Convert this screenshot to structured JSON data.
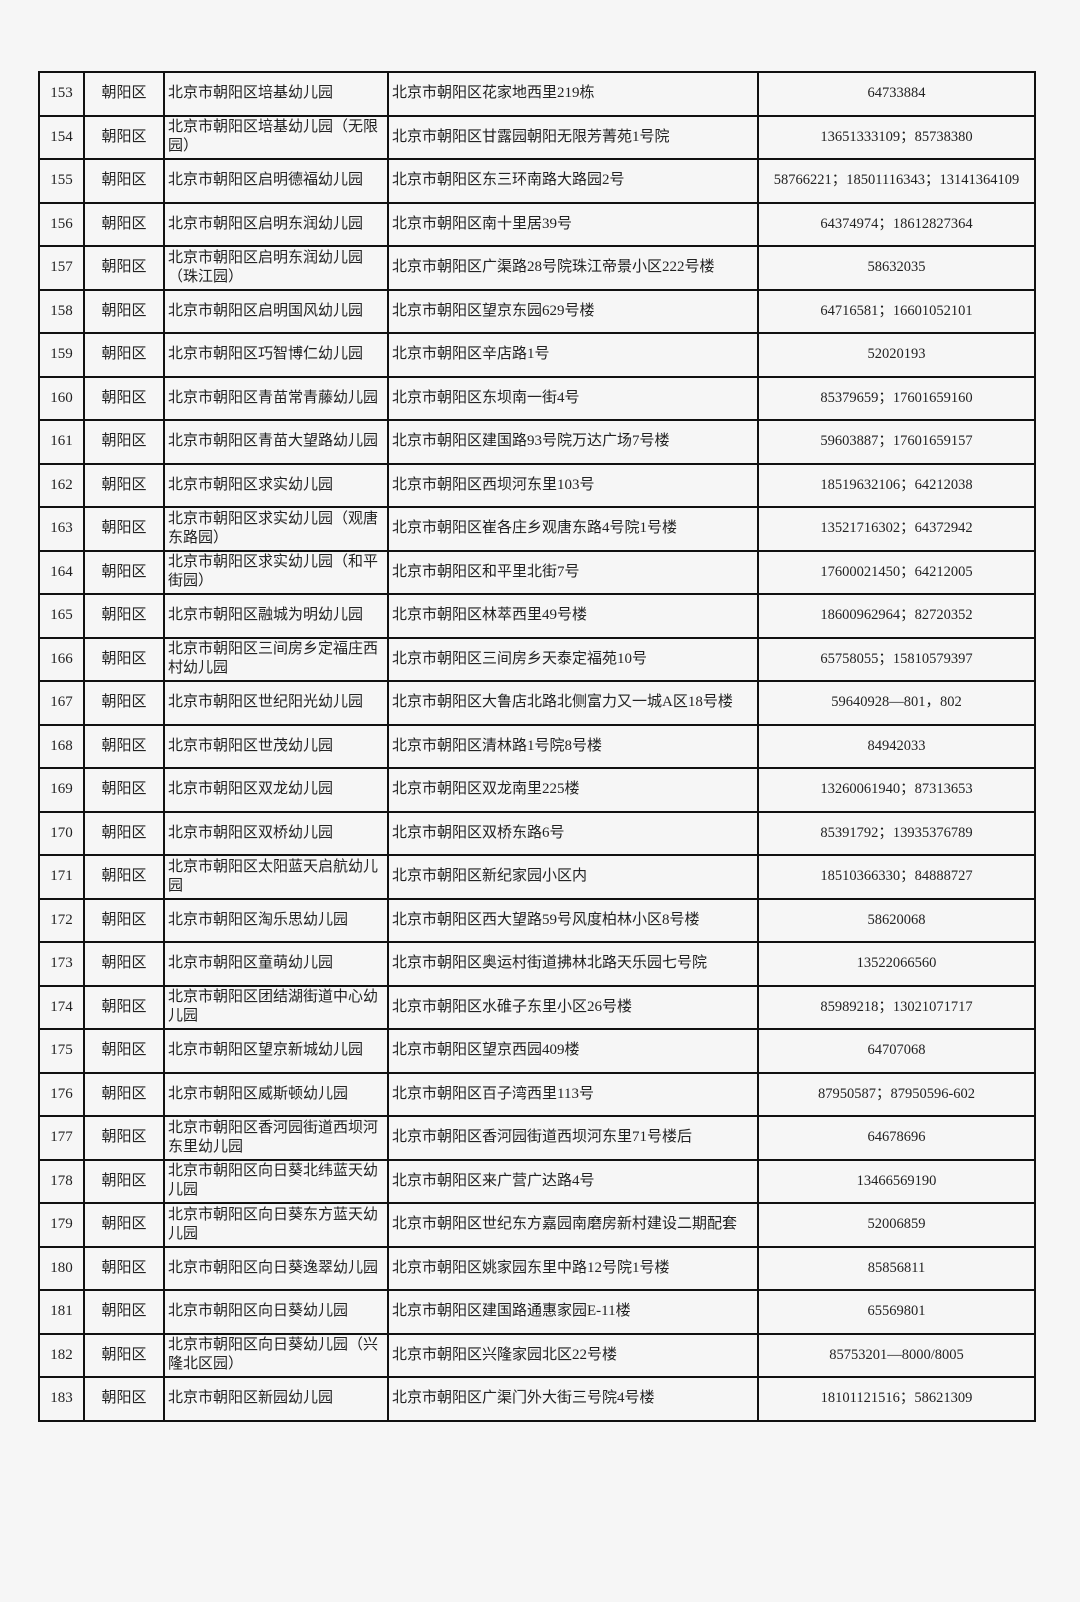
{
  "table": {
    "rows": [
      [
        "153",
        "朝阳区",
        "北京市朝阳区培基幼儿园",
        "北京市朝阳区花家地西里219栋",
        "64733884"
      ],
      [
        "154",
        "朝阳区",
        "北京市朝阳区培基幼儿园（无限园）",
        "北京市朝阳区甘露园朝阳无限芳菁苑1号院",
        "13651333109；85738380"
      ],
      [
        "155",
        "朝阳区",
        "北京市朝阳区启明德福幼儿园",
        "北京市朝阳区东三环南路大路园2号",
        "58766221；18501116343；13141364109"
      ],
      [
        "156",
        "朝阳区",
        "北京市朝阳区启明东润幼儿园",
        "北京市朝阳区南十里居39号",
        "64374974；18612827364"
      ],
      [
        "157",
        "朝阳区",
        "北京市朝阳区启明东润幼儿园（珠江园）",
        "北京市朝阳区广渠路28号院珠江帝景小区222号楼",
        "58632035"
      ],
      [
        "158",
        "朝阳区",
        "北京市朝阳区启明国风幼儿园",
        "北京市朝阳区望京东园629号楼",
        "64716581；16601052101"
      ],
      [
        "159",
        "朝阳区",
        "北京市朝阳区巧智博仁幼儿园",
        "北京市朝阳区辛店路1号",
        "52020193"
      ],
      [
        "160",
        "朝阳区",
        "北京市朝阳区青苗常青藤幼儿园",
        "北京市朝阳区东坝南一街4号",
        "85379659；17601659160"
      ],
      [
        "161",
        "朝阳区",
        "北京市朝阳区青苗大望路幼儿园",
        "北京市朝阳区建国路93号院万达广场7号楼",
        "59603887；17601659157"
      ],
      [
        "162",
        "朝阳区",
        "北京市朝阳区求实幼儿园",
        "北京市朝阳区西坝河东里103号",
        "18519632106；64212038"
      ],
      [
        "163",
        "朝阳区",
        "北京市朝阳区求实幼儿园（观唐东路园）",
        "北京市朝阳区崔各庄乡观唐东路4号院1号楼",
        "13521716302；64372942"
      ],
      [
        "164",
        "朝阳区",
        "北京市朝阳区求实幼儿园（和平街园）",
        "北京市朝阳区和平里北街7号",
        "17600021450；64212005"
      ],
      [
        "165",
        "朝阳区",
        "北京市朝阳区融城为明幼儿园",
        "北京市朝阳区林萃西里49号楼",
        "18600962964；82720352"
      ],
      [
        "166",
        "朝阳区",
        "北京市朝阳区三间房乡定福庄西村幼儿园",
        "北京市朝阳区三间房乡天泰定福苑10号",
        "65758055；15810579397"
      ],
      [
        "167",
        "朝阳区",
        "北京市朝阳区世纪阳光幼儿园",
        "北京市朝阳区大鲁店北路北侧富力又一城A区18号楼",
        "59640928—801，802"
      ],
      [
        "168",
        "朝阳区",
        "北京市朝阳区世茂幼儿园",
        "北京市朝阳区清林路1号院8号楼",
        "84942033"
      ],
      [
        "169",
        "朝阳区",
        "北京市朝阳区双龙幼儿园",
        "北京市朝阳区双龙南里225楼",
        "13260061940；87313653"
      ],
      [
        "170",
        "朝阳区",
        "北京市朝阳区双桥幼儿园",
        "北京市朝阳区双桥东路6号",
        "85391792；13935376789"
      ],
      [
        "171",
        "朝阳区",
        "北京市朝阳区太阳蓝天启航幼儿园",
        "北京市朝阳区新纪家园小区内",
        "18510366330；84888727"
      ],
      [
        "172",
        "朝阳区",
        "北京市朝阳区淘乐思幼儿园",
        "北京市朝阳区西大望路59号风度柏林小区8号楼",
        "58620068"
      ],
      [
        "173",
        "朝阳区",
        "北京市朝阳区童萌幼儿园",
        "北京市朝阳区奥运村街道拂林北路天乐园七号院",
        "13522066560"
      ],
      [
        "174",
        "朝阳区",
        "北京市朝阳区团结湖街道中心幼儿园",
        "北京市朝阳区水碓子东里小区26号楼",
        "85989218；13021071717"
      ],
      [
        "175",
        "朝阳区",
        "北京市朝阳区望京新城幼儿园",
        "北京市朝阳区望京西园409楼",
        "64707068"
      ],
      [
        "176",
        "朝阳区",
        "北京市朝阳区威斯顿幼儿园",
        "北京市朝阳区百子湾西里113号",
        "87950587；87950596-602"
      ],
      [
        "177",
        "朝阳区",
        "北京市朝阳区香河园街道西坝河东里幼儿园",
        "北京市朝阳区香河园街道西坝河东里71号楼后",
        "64678696"
      ],
      [
        "178",
        "朝阳区",
        "北京市朝阳区向日葵北纬蓝天幼儿园",
        "北京市朝阳区来广营广达路4号",
        "13466569190"
      ],
      [
        "179",
        "朝阳区",
        "北京市朝阳区向日葵东方蓝天幼儿园",
        "北京市朝阳区世纪东方嘉园南磨房新村建设二期配套",
        "52006859"
      ],
      [
        "180",
        "朝阳区",
        "北京市朝阳区向日葵逸翠幼儿园",
        "北京市朝阳区姚家园东里中路12号院1号楼",
        "85856811"
      ],
      [
        "181",
        "朝阳区",
        "北京市朝阳区向日葵幼儿园",
        "北京市朝阳区建国路通惠家园E-11楼",
        "65569801"
      ],
      [
        "182",
        "朝阳区",
        "北京市朝阳区向日葵幼儿园（兴隆北区园）",
        "北京市朝阳区兴隆家园北区22号楼",
        "85753201—8000/8005"
      ],
      [
        "183",
        "朝阳区",
        "北京市朝阳区新园幼儿园",
        "北京市朝阳区广渠门外大街三号院4号楼",
        "18101121516；58621309"
      ]
    ]
  }
}
